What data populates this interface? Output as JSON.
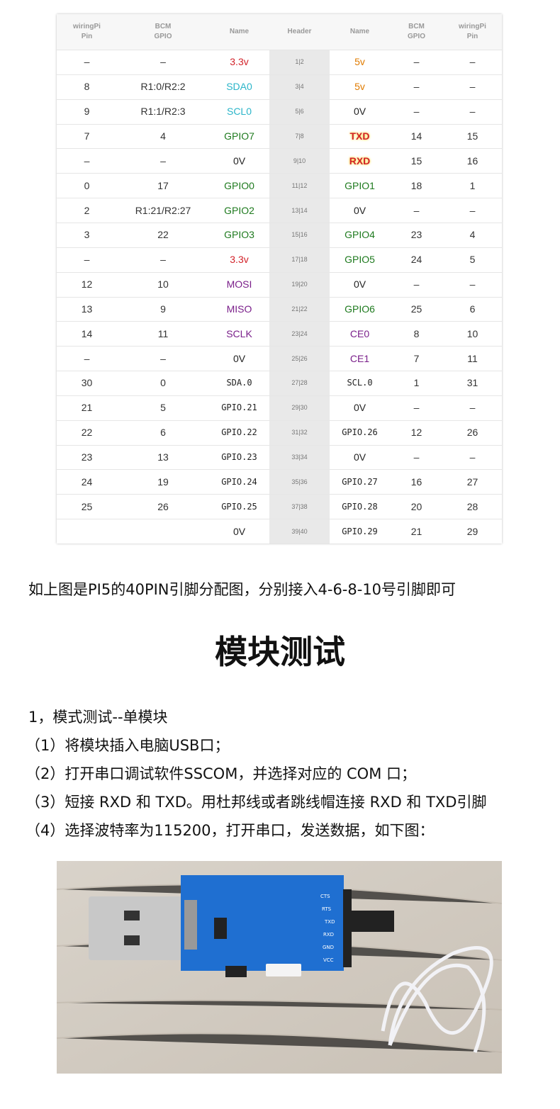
{
  "table": {
    "header": [
      "wiringPi\nPin",
      "BCM\nGPIO",
      "Name",
      "Header",
      "Name",
      "BCM\nGPIO",
      "wiringPi\nPin"
    ],
    "rows": [
      [
        "–",
        "–",
        "3.3v",
        "1|2",
        "5v",
        "–",
        "–"
      ],
      [
        "8",
        "R1:0/R2:2",
        "SDA0",
        "3|4",
        "5v",
        "–",
        "–"
      ],
      [
        "9",
        "R1:1/R2:3",
        "SCL0",
        "5|6",
        "0V",
        "–",
        "–"
      ],
      [
        "7",
        "4",
        "GPIO7",
        "7|8",
        "TXD",
        "14",
        "15"
      ],
      [
        "–",
        "–",
        "0V",
        "9|10",
        "RXD",
        "15",
        "16"
      ],
      [
        "0",
        "17",
        "GPIO0",
        "11|12",
        "GPIO1",
        "18",
        "1"
      ],
      [
        "2",
        "R1:21/R2:27",
        "GPIO2",
        "13|14",
        "0V",
        "–",
        "–"
      ],
      [
        "3",
        "22",
        "GPIO3",
        "15|16",
        "GPIO4",
        "23",
        "4"
      ],
      [
        "–",
        "–",
        "3.3v",
        "17|18",
        "GPIO5",
        "24",
        "5"
      ],
      [
        "12",
        "10",
        "MOSI",
        "19|20",
        "0V",
        "–",
        "–"
      ],
      [
        "13",
        "9",
        "MISO",
        "21|22",
        "GPIO6",
        "25",
        "6"
      ],
      [
        "14",
        "11",
        "SCLK",
        "23|24",
        "CE0",
        "8",
        "10"
      ],
      [
        "–",
        "–",
        "0V",
        "25|26",
        "CE1",
        "7",
        "11"
      ],
      [
        "30",
        "0",
        "SDA.0",
        "27|28",
        "SCL.0",
        "1",
        "31"
      ],
      [
        "21",
        "5",
        "GPIO.21",
        "29|30",
        "0V",
        "–",
        "–"
      ],
      [
        "22",
        "6",
        "GPIO.22",
        "31|32",
        "GPIO.26",
        "12",
        "26"
      ],
      [
        "23",
        "13",
        "GPIO.23",
        "33|34",
        "0V",
        "–",
        "–"
      ],
      [
        "24",
        "19",
        "GPIO.24",
        "35|36",
        "GPIO.27",
        "16",
        "27"
      ],
      [
        "25",
        "26",
        "GPIO.25",
        "37|38",
        "GPIO.28",
        "20",
        "28"
      ],
      [
        null,
        null,
        "0V",
        "39|40",
        "GPIO.29",
        "21",
        "29"
      ]
    ],
    "name_colors": [
      [
        "#d2232a",
        "#e07b00"
      ],
      [
        "#2bb5c9",
        "#e07b00"
      ],
      [
        "#2bb5c9",
        "#222"
      ],
      [
        "#1e7a1e",
        "#d2232a"
      ],
      [
        "#222",
        "#d2232a"
      ],
      [
        "#1e7a1e",
        "#1e7a1e"
      ],
      [
        "#1e7a1e",
        "#222"
      ],
      [
        "#1e7a1e",
        "#1e7a1e"
      ],
      [
        "#d2232a",
        "#1e7a1e"
      ],
      [
        "#7a1f8a",
        "#222"
      ],
      [
        "#7a1f8a",
        "#1e7a1e"
      ],
      [
        "#7a1f8a",
        "#7a1f8a"
      ],
      [
        "#222",
        "#7a1f8a"
      ],
      [
        "#222",
        "#222"
      ],
      [
        "#222",
        "#222"
      ],
      [
        "#222",
        "#222"
      ],
      [
        "#222",
        "#222"
      ],
      [
        "#222",
        "#222"
      ],
      [
        "#222",
        "#222"
      ],
      [
        "#222",
        "#222"
      ]
    ]
  },
  "caption": "如上图是PI5的40PIN引脚分配图，分别接入4-6-8-10号引脚即可",
  "heading": "模块测试",
  "section": "1，模式测试--单模块",
  "steps": [
    "（1）将模块插入电脑USB口；",
    "（2）打开串口调试软件SSCOM，并选择对应的 COM 口；",
    "（3）短接 RXD 和 TXD。用杜邦线或者跳线帽连接 RXD 和 TXD引脚",
    "（4）选择波特率为115200，打开串口，发送数据，如下图："
  ]
}
